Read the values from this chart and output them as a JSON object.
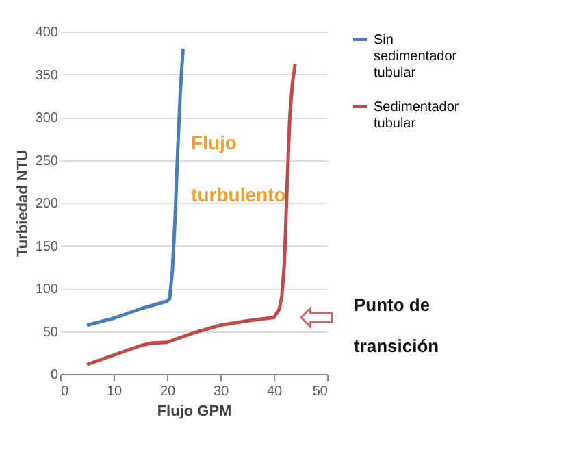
{
  "chart_data": {
    "type": "line",
    "xlabel": "Flujo GPM",
    "ylabel": "Turbiedad NTU",
    "xlim": [
      0,
      50
    ],
    "xticks": [
      0,
      10,
      20,
      30,
      40,
      50
    ],
    "ylim": [
      0,
      400
    ],
    "yticks": [
      0,
      50,
      100,
      150,
      200,
      250,
      300,
      350,
      400
    ],
    "grid": "y",
    "legend": "right",
    "marker": "none",
    "line_style": "solid",
    "series": [
      {
        "name": "Sin sedimentador tubular",
        "color": "#4a7ebb",
        "x": [
          5,
          10,
          15,
          20,
          20.5,
          21,
          21.5,
          22,
          22.5,
          23
        ],
        "values": [
          57,
          65,
          76,
          85,
          88,
          120,
          180,
          260,
          330,
          380
        ]
      },
      {
        "name": "Sedimentador tubular",
        "color": "#be4b48",
        "x": [
          5,
          10,
          15,
          17,
          20,
          25,
          30,
          35,
          40,
          41,
          41.5,
          42,
          42.5,
          43,
          43.5,
          44
        ],
        "values": [
          11,
          22,
          33,
          36,
          37,
          48,
          57,
          62,
          66,
          75,
          90,
          130,
          220,
          300,
          340,
          362
        ]
      }
    ],
    "annotations": [
      "Flujo turbulento",
      "Punto de transición"
    ]
  }
}
